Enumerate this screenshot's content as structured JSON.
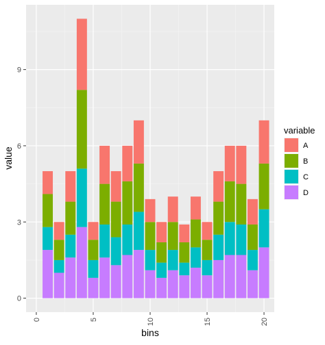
{
  "chart_data": {
    "type": "bar",
    "stacked": true,
    "x": [
      1,
      2,
      3,
      4,
      5,
      6,
      7,
      8,
      9,
      10,
      11,
      12,
      13,
      14,
      15,
      16,
      17,
      18,
      19,
      20
    ],
    "series": [
      {
        "name": "D",
        "color": "#C77CFF",
        "values": [
          1.9,
          1.0,
          1.6,
          2.8,
          0.8,
          1.6,
          1.3,
          1.7,
          1.9,
          1.1,
          0.8,
          1.1,
          0.9,
          1.2,
          0.9,
          1.5,
          1.7,
          1.7,
          1.1,
          2.0
        ]
      },
      {
        "name": "C",
        "color": "#00BFC4",
        "values": [
          0.9,
          0.5,
          0.9,
          2.3,
          0.7,
          1.3,
          1.1,
          1.2,
          1.5,
          0.8,
          0.6,
          0.8,
          0.5,
          0.8,
          0.6,
          1.0,
          1.3,
          1.2,
          0.8,
          1.5
        ]
      },
      {
        "name": "B",
        "color": "#7CAE00",
        "values": [
          1.3,
          0.8,
          1.3,
          3.1,
          0.8,
          1.6,
          1.4,
          1.7,
          1.9,
          1.1,
          0.8,
          1.1,
          0.8,
          1.1,
          0.8,
          1.3,
          1.6,
          1.6,
          1.0,
          1.8
        ]
      },
      {
        "name": "A",
        "color": "#F8766D",
        "values": [
          0.9,
          0.7,
          1.2,
          2.8,
          0.7,
          1.5,
          1.2,
          1.4,
          1.7,
          0.9,
          0.8,
          1.0,
          0.7,
          0.9,
          0.7,
          1.2,
          1.4,
          1.5,
          1.0,
          1.7
        ]
      }
    ],
    "xlabel": "bins",
    "ylabel": "value",
    "xlim": [
      -0.9,
      20.9
    ],
    "ylim": [
      -0.55,
      11.55
    ],
    "xticks": [
      0,
      5,
      10,
      15,
      20
    ],
    "yticks": [
      0,
      3,
      6,
      9
    ],
    "legend": {
      "title": "variable",
      "position": "right",
      "entries": [
        "A",
        "B",
        "C",
        "D"
      ]
    },
    "grid": true,
    "panel_background": "#EBEBEB"
  }
}
